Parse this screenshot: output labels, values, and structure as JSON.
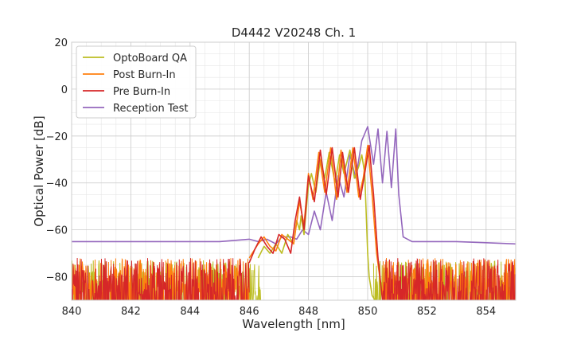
{
  "chart_data": {
    "type": "line",
    "title": "D4442 V20248 Ch. 1",
    "xlabel": "Wavelength [nm]",
    "ylabel": "Optical Power [dB]",
    "xlim": [
      840,
      855
    ],
    "ylim": [
      -90,
      20
    ],
    "xticks": [
      "840",
      "842",
      "844",
      "846",
      "848",
      "850",
      "852",
      "854"
    ],
    "yticks": [
      "20",
      "0",
      "−20",
      "−40",
      "−60",
      "−80"
    ],
    "grid": true,
    "minor_grid": true,
    "legend_position": "top-left",
    "series": [
      {
        "name": "OptoBoard QA",
        "color": "#bcbd22",
        "noise_floor": {
          "x_ranges": [
            [
              840,
              846.4
            ],
            [
              850.2,
              855
            ]
          ],
          "range": [
            -88,
            -73
          ]
        },
        "x": [
          846.3,
          846.5,
          846.7,
          846.9,
          847.1,
          847.3,
          847.5,
          847.6,
          847.7,
          847.75,
          847.85,
          848.0,
          848.1,
          848.25,
          848.4,
          848.55,
          848.7,
          848.9,
          849.05,
          849.2,
          849.4,
          849.55,
          849.7,
          849.8,
          849.9,
          850.0,
          850.05,
          850.15,
          850.25
        ],
        "y": [
          -72,
          -67,
          -70,
          -66,
          -70,
          -62,
          -66,
          -56,
          -60,
          -54,
          -62,
          -41,
          -36,
          -44,
          -30,
          -38,
          -27,
          -40,
          -28,
          -36,
          -26,
          -38,
          -33,
          -28,
          -36,
          -70,
          -80,
          -88,
          -90
        ]
      },
      {
        "name": "Post Burn-In",
        "color": "#ff7f0e",
        "noise_floor": {
          "x_ranges": [
            [
              840,
              846.0
            ],
            [
              850.5,
              855
            ]
          ],
          "range": [
            -88,
            -72
          ]
        },
        "x": [
          846.0,
          846.3,
          846.5,
          846.7,
          846.9,
          847.1,
          847.3,
          847.5,
          847.7,
          847.85,
          848.0,
          848.15,
          848.35,
          848.55,
          848.75,
          848.95,
          849.1,
          849.3,
          849.5,
          849.7,
          849.85,
          850.0,
          850.15,
          850.3,
          850.45,
          850.55
        ],
        "y": [
          -72,
          -66,
          -63,
          -67,
          -69,
          -62,
          -64,
          -66,
          -48,
          -58,
          -36,
          -47,
          -27,
          -44,
          -25,
          -47,
          -26,
          -44,
          -25,
          -46,
          -38,
          -24,
          -45,
          -70,
          -84,
          -90
        ]
      },
      {
        "name": "Pre Burn-In",
        "color": "#d62728",
        "noise_floor": {
          "x_ranges": [
            [
              840,
              846.0
            ],
            [
              850.5,
              855
            ]
          ],
          "range": [
            -88,
            -72
          ]
        },
        "x": [
          846.0,
          846.2,
          846.4,
          846.6,
          846.8,
          847.0,
          847.2,
          847.4,
          847.55,
          847.7,
          847.85,
          848.0,
          848.2,
          848.4,
          848.6,
          848.8,
          849.0,
          849.15,
          849.35,
          849.55,
          849.75,
          849.9,
          850.05,
          850.2,
          850.35,
          850.5
        ],
        "y": [
          -74,
          -68,
          -63,
          -67,
          -70,
          -62,
          -64,
          -70,
          -56,
          -46,
          -60,
          -37,
          -48,
          -26,
          -45,
          -25,
          -46,
          -27,
          -44,
          -25,
          -47,
          -36,
          -24,
          -45,
          -72,
          -90
        ]
      },
      {
        "name": "Reception Test",
        "color": "#9467bd",
        "x": [
          840,
          841,
          842,
          843,
          844,
          845,
          845.5,
          846.0,
          846.3,
          846.6,
          846.9,
          847.1,
          847.4,
          847.6,
          847.8,
          848.0,
          848.2,
          848.4,
          848.6,
          848.8,
          849.0,
          849.2,
          849.4,
          849.6,
          849.8,
          850.0,
          850.2,
          850.35,
          850.5,
          850.65,
          850.8,
          850.95,
          851.05,
          851.2,
          851.5,
          852,
          853,
          854,
          855
        ],
        "y": [
          -65,
          -65,
          -65,
          -65,
          -65,
          -65,
          -64.5,
          -64,
          -65,
          -64,
          -66,
          -63,
          -63,
          -64,
          -60,
          -62,
          -52,
          -60,
          -44,
          -56,
          -37,
          -46,
          -28,
          -38,
          -22,
          -16,
          -32,
          -17,
          -40,
          -18,
          -42,
          -17,
          -45,
          -63,
          -65,
          -65,
          -65,
          -65.5,
          -66
        ]
      }
    ]
  }
}
